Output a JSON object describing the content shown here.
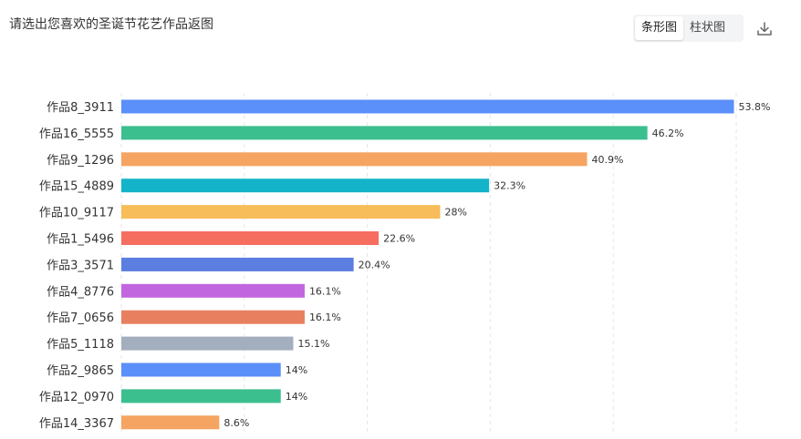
{
  "question": "请选出您喜欢的圣诞节花艺作品返图",
  "toggle": {
    "bar_label": "条形图",
    "column_label": "柱状图",
    "active": "bar"
  },
  "download_icon": "download-icon",
  "chart_data": {
    "type": "bar",
    "orientation": "horizontal",
    "categories": [
      "作品8_3911",
      "作品16_5555",
      "作品9_1296",
      "作品15_4889",
      "作品10_9117",
      "作品1_5496",
      "作品3_3571",
      "作品4_8776",
      "作品7_0656",
      "作品5_1118",
      "作品2_9865",
      "作品12_0970",
      "作品14_3367"
    ],
    "values": [
      53.8,
      46.2,
      40.9,
      32.3,
      28,
      22.6,
      20.4,
      16.1,
      16.1,
      15.1,
      14,
      14,
      8.6
    ],
    "value_labels": [
      "53.8%",
      "46.2%",
      "40.9%",
      "32.3%",
      "28%",
      "22.6%",
      "20.4%",
      "16.1%",
      "16.1%",
      "15.1%",
      "14%",
      "14%",
      "8.6%"
    ],
    "colors": [
      "#5b8ff9",
      "#3bbf8e",
      "#f6a461",
      "#13b4c9",
      "#f7bd5a",
      "#f66e60",
      "#5b7ee0",
      "#c266e0",
      "#e8805f",
      "#a3afbe",
      "#5b8ff9",
      "#3bbf8e",
      "#f6a461"
    ],
    "xlim": [
      0,
      54
    ],
    "grid": true
  }
}
